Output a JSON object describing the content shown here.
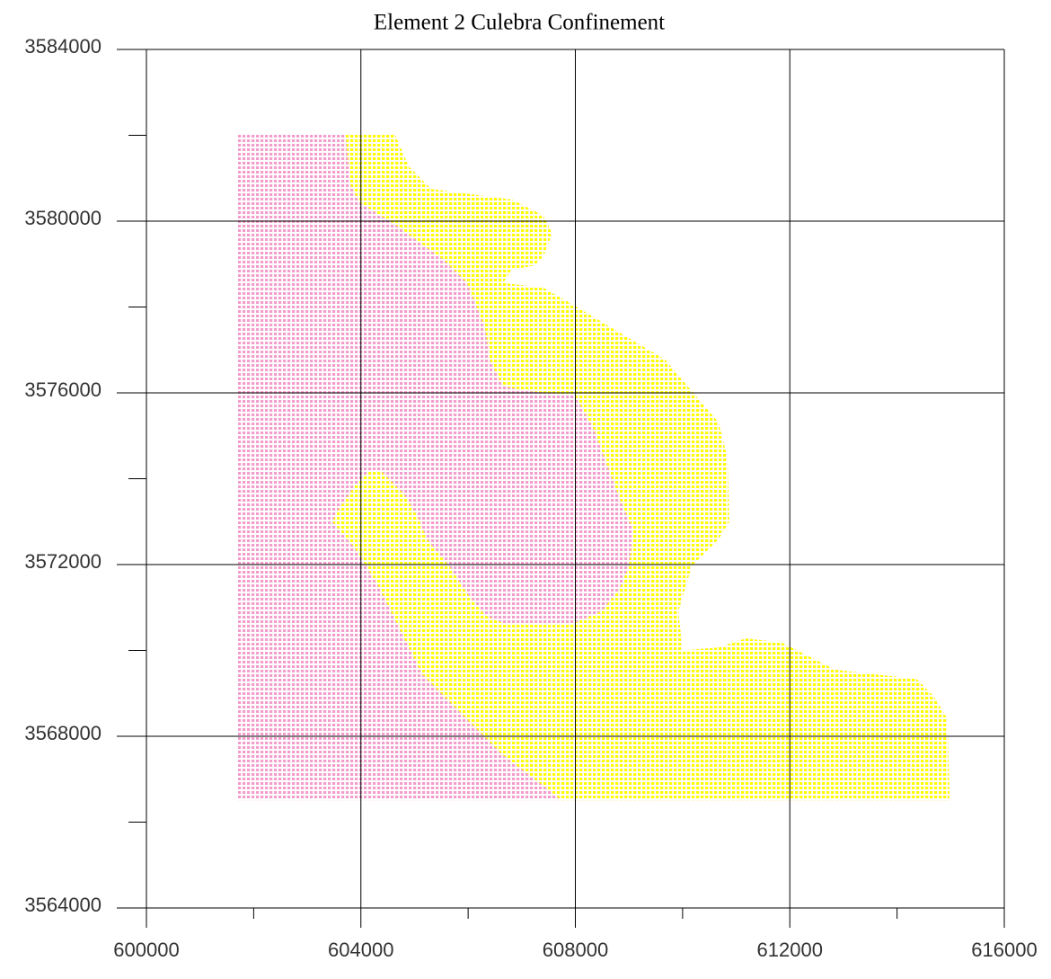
{
  "chart_data": {
    "type": "polygon",
    "title": "Element 2 Culebra Confinement",
    "xlim": [
      600000,
      616000
    ],
    "xticks": [
      600000,
      604000,
      608000,
      612000,
      616000
    ],
    "xminorticks": [
      602000,
      606000,
      610000,
      614000
    ],
    "ylim": [
      3564000,
      3584000
    ],
    "yticks": [
      3564000,
      3568000,
      3572000,
      3576000,
      3580000,
      3584000
    ],
    "yminorticks": [
      3566000,
      3570000,
      3574000,
      3578000,
      3582000
    ],
    "grid": true,
    "series": [
      {
        "color": "#f49ccb",
        "x": [
          601700,
          604640,
          604890,
          605310,
          606820,
          607400,
          607570,
          607400,
          607240,
          606820,
          606650,
          607400,
          607990,
          608830,
          609670,
          610170,
          610670,
          610840,
          610870,
          610670,
          610170,
          609920,
          610000,
          610670,
          611180,
          611850,
          612520,
          612850,
          613520,
          614360,
          614690,
          614940,
          614980,
          601700
        ],
        "y": [
          3582010,
          3582010,
          3581280,
          3580750,
          3580500,
          3580130,
          3579710,
          3579180,
          3578970,
          3578870,
          3578560,
          3578450,
          3578030,
          3577400,
          3576780,
          3576040,
          3575310,
          3574470,
          3573000,
          3572590,
          3571960,
          3570910,
          3570000,
          3570070,
          3570280,
          3570180,
          3569760,
          3569550,
          3569450,
          3569340,
          3568920,
          3568400,
          3566510,
          3566510
        ]
      },
      {
        "color": "#ffff00",
        "x": [
          603720,
          604640,
          604890,
          605310,
          606820,
          607400,
          607570,
          607400,
          607240,
          606820,
          606650,
          607400,
          607990,
          608830,
          609670,
          610170,
          610670,
          610840,
          610870,
          610670,
          610170,
          609920,
          610000,
          610670,
          611180,
          611850,
          612520,
          612850,
          613520,
          614360,
          614690,
          614940,
          614980,
          607740,
          607320,
          606650,
          605810,
          605140,
          604810,
          604310,
          603890,
          603470,
          603550,
          603890,
          604140,
          604390,
          604810,
          605060,
          605230,
          605650,
          605980,
          606320,
          606650,
          607990,
          608490,
          608830,
          609000,
          609080,
          608830,
          608330,
          607990,
          607150,
          606650,
          606400,
          606320,
          605980,
          605560,
          604640,
          603970,
          603800,
          603720
        ],
        "y": [
          3582010,
          3582010,
          3581280,
          3580750,
          3580500,
          3580130,
          3579710,
          3579180,
          3578970,
          3578870,
          3578560,
          3578450,
          3578030,
          3577400,
          3576780,
          3576040,
          3575310,
          3574470,
          3573000,
          3572590,
          3571960,
          3570910,
          3570000,
          3570070,
          3570280,
          3570180,
          3569760,
          3569550,
          3569450,
          3569340,
          3568920,
          3568400,
          3566510,
          3566510,
          3566930,
          3567560,
          3568610,
          3569450,
          3570280,
          3571540,
          3572380,
          3573000,
          3573220,
          3573840,
          3574160,
          3574160,
          3573630,
          3573110,
          3572590,
          3571960,
          3571330,
          3570810,
          3570640,
          3570640,
          3570910,
          3571440,
          3571960,
          3572800,
          3573530,
          3575200,
          3575940,
          3576040,
          3576150,
          3576780,
          3577510,
          3578560,
          3579080,
          3579920,
          3580440,
          3580860,
          3582010
        ]
      }
    ]
  }
}
